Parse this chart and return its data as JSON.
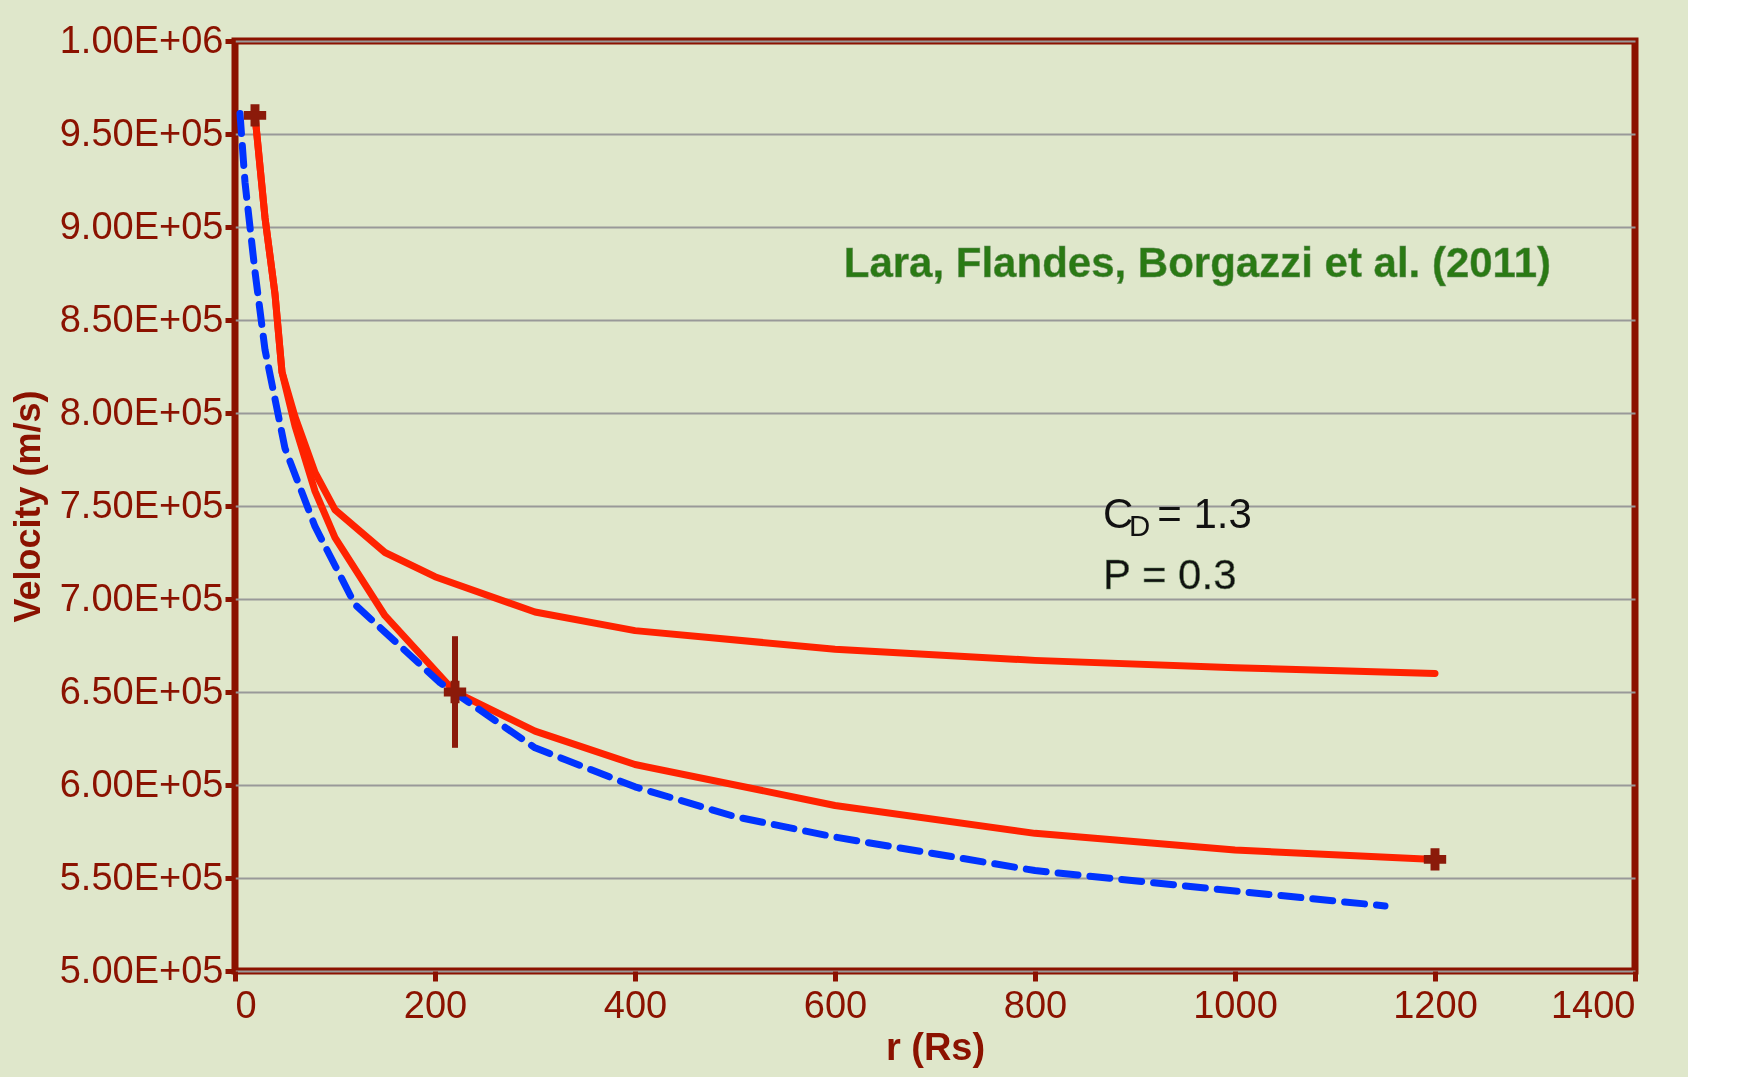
{
  "chart_data": {
    "type": "line",
    "xlabel": "r (Rs)",
    "ylabel": "Velocity (m/s)",
    "xlim": [
      0,
      1400
    ],
    "xticks": [
      0,
      200,
      400,
      600,
      800,
      1000,
      1200,
      1400
    ],
    "ylim": [
      500000,
      1000000
    ],
    "yticks": [
      {
        "value": 500000,
        "label": "5.00E+05"
      },
      {
        "value": 550000,
        "label": "5.50E+05"
      },
      {
        "value": 600000,
        "label": "6.00E+05"
      },
      {
        "value": 650000,
        "label": "6.50E+05"
      },
      {
        "value": 700000,
        "label": "7.00E+05"
      },
      {
        "value": 750000,
        "label": "7.50E+05"
      },
      {
        "value": 800000,
        "label": "8.00E+05"
      },
      {
        "value": 850000,
        "label": "8.50E+05"
      },
      {
        "value": 900000,
        "label": "9.00E+05"
      },
      {
        "value": 950000,
        "label": "9.50E+05"
      },
      {
        "value": 1000000,
        "label": "1.00E+06"
      }
    ],
    "grid": "y",
    "legend": false,
    "series": [
      {
        "color": "#ff2200",
        "line_style": "solid",
        "x": [
          20,
          30,
          40,
          47,
          60,
          80,
          100,
          150,
          200,
          300,
          400,
          600,
          800,
          1000,
          1200
        ],
        "values": [
          960000,
          905000,
          864000,
          822000,
          798000,
          768000,
          748000,
          725000,
          712000,
          693000,
          683000,
          673000,
          667000,
          663000,
          660000
        ]
      },
      {
        "color": "#ff2200",
        "line_style": "solid",
        "x": [
          20,
          30,
          40,
          47,
          60,
          80,
          100,
          150,
          220,
          300,
          400,
          600,
          800,
          1000,
          1200
        ],
        "values": [
          960000,
          905000,
          864000,
          822000,
          793000,
          758000,
          733000,
          691000,
          650000,
          629000,
          611000,
          589000,
          574000,
          565000,
          560000
        ]
      },
      {
        "color": "#0033ff",
        "line_style": "dashed",
        "x": [
          5,
          10,
          20,
          30,
          50,
          80,
          120,
          205,
          300,
          400,
          500,
          600,
          800,
          1000,
          1150
        ],
        "values": [
          961000,
          924000,
          876000,
          834000,
          781000,
          739000,
          697000,
          655000,
          620000,
          599000,
          583000,
          572000,
          554000,
          543000,
          535000
        ]
      },
      {
        "type": "scatter",
        "color": "#8b1a0a",
        "marker": "cross",
        "x": [
          20,
          220,
          1200
        ],
        "values": [
          960000,
          650000,
          560000
        ],
        "errors": [
          null,
          [
            620000,
            680000
          ],
          null
        ]
      }
    ],
    "annotations": [
      "Lara, Flandes, Borgazzi et al. (2011)",
      "C$_{D}$ = 1.3",
      "P = 0.3"
    ]
  }
}
